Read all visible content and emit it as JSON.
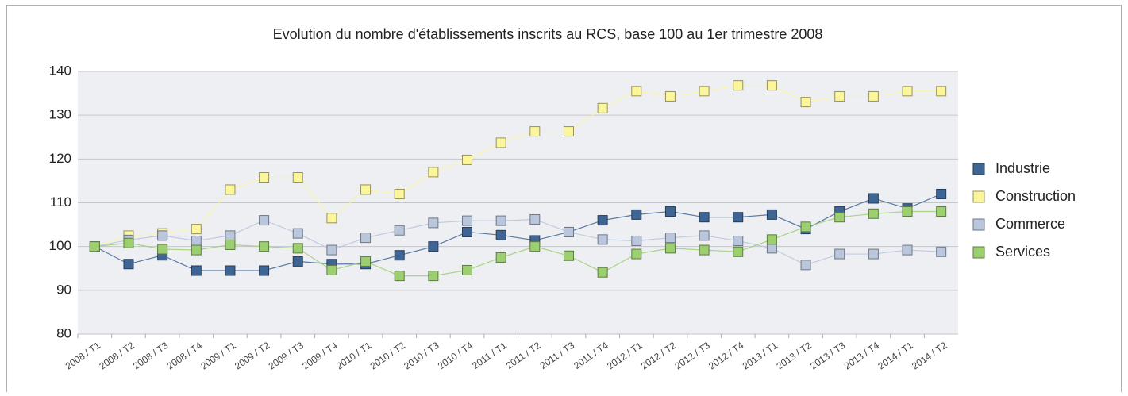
{
  "chart_data": {
    "type": "line",
    "title": "Evolution du nombre d'établissements inscrits au RCS, base 100 au 1er trimestre 2008",
    "categories": [
      "2008 / T1",
      "2008 / T2",
      "2008 / T3",
      "2008 / T4",
      "2009 / T1",
      "2009 / T2",
      "2009 / T3",
      "2009 / T4",
      "2010 / T1",
      "2010 / T2",
      "2010 / T3",
      "2010 / T4",
      "2011 / T1",
      "2011 / T2",
      "2011 / T3",
      "2011 / T4",
      "2012 / T1",
      "2012 / T2",
      "2012 / T3",
      "2012 / T4",
      "2013 / T1",
      "2013 / T2",
      "2013 / T3",
      "2013 / T4",
      "2014 / T1",
      "2014 / T2"
    ],
    "series": [
      {
        "name": "Industrie",
        "color": "#3f6595",
        "values": [
          100,
          96,
          98,
          94.5,
          94.5,
          94.5,
          96.6,
          96,
          96,
          98,
          100,
          103.3,
          102.6,
          101.4,
          103.3,
          106,
          107.3,
          108,
          106.7,
          106.7,
          107.3,
          104,
          108,
          111,
          108.7,
          112
        ]
      },
      {
        "name": "Construction",
        "color": "#fbf59b",
        "values": [
          100,
          102.5,
          103,
          104,
          113,
          115.8,
          115.8,
          106.5,
          113,
          112,
          117,
          119.8,
          123.7,
          126.3,
          126.3,
          131.6,
          135.5,
          134.3,
          135.5,
          136.8,
          136.8,
          133,
          134.3,
          134.3,
          135.5,
          135.5
        ]
      },
      {
        "name": "Commerce",
        "color": "#b9c6dc",
        "values": [
          100,
          101.5,
          102.5,
          101.3,
          102.5,
          106,
          103,
          99.2,
          102,
          103.7,
          105.4,
          105.9,
          105.9,
          106.2,
          103.3,
          101.6,
          101.3,
          102,
          102.5,
          101.3,
          99.6,
          95.8,
          98.3,
          98.3,
          99.2,
          98.8
        ]
      },
      {
        "name": "Services",
        "color": "#9ccf70",
        "values": [
          100,
          100.8,
          99.4,
          99.2,
          100.4,
          100,
          99.6,
          94.6,
          96.6,
          93.3,
          93.3,
          94.6,
          97.5,
          100,
          97.9,
          94.1,
          98.3,
          99.6,
          99.2,
          98.8,
          101.6,
          104.5,
          106.7,
          107.5,
          108,
          108
        ]
      }
    ],
    "ylim": [
      80,
      140
    ],
    "yticks": [
      80,
      90,
      100,
      110,
      120,
      130,
      140
    ],
    "grid": true,
    "legend": "right"
  }
}
